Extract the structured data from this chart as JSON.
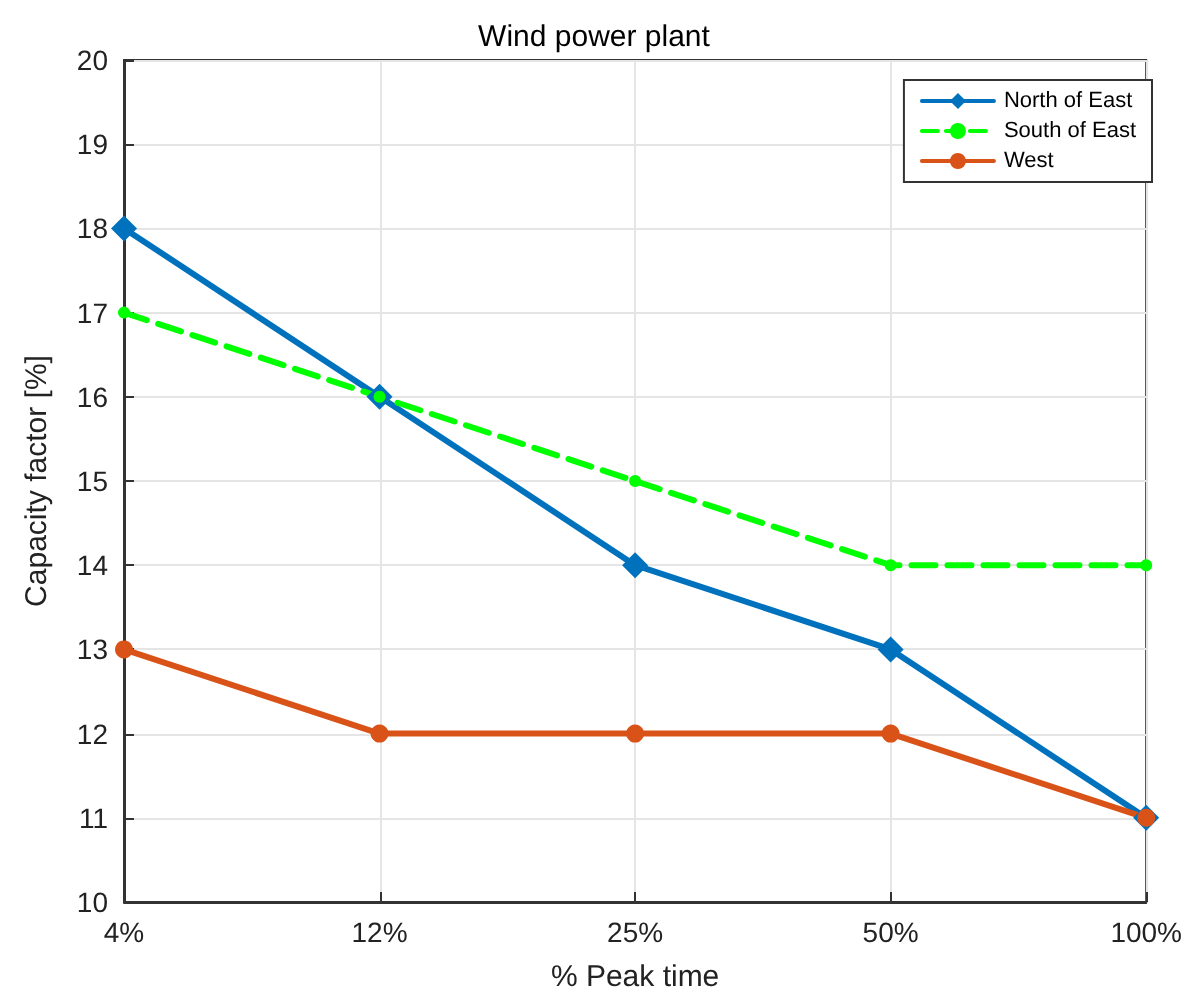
{
  "chart_data": {
    "type": "line",
    "title": "Wind power plant",
    "xlabel": "% Peak time",
    "ylabel": "Capacity factor [%]",
    "categories": [
      "4%",
      "12%",
      "25%",
      "50%",
      "100%"
    ],
    "series": [
      {
        "name": "North of East",
        "color": "#0072bd",
        "values": [
          18,
          16,
          14,
          13,
          11
        ],
        "marker": "diamond",
        "line_style": "solid"
      },
      {
        "name": "South of East",
        "color": "#00ff00",
        "values": [
          17,
          16,
          15,
          14,
          14
        ],
        "marker": "circle",
        "line_style": "dashed"
      },
      {
        "name": "West",
        "color": "#d95319",
        "values": [
          13,
          12,
          12,
          12,
          11
        ],
        "marker": "circle",
        "line_style": "solid"
      }
    ],
    "ylim": [
      10,
      20
    ],
    "yticks": [
      10,
      11,
      12,
      13,
      14,
      15,
      16,
      17,
      18,
      19,
      20
    ],
    "grid": true,
    "legend": "top right"
  }
}
